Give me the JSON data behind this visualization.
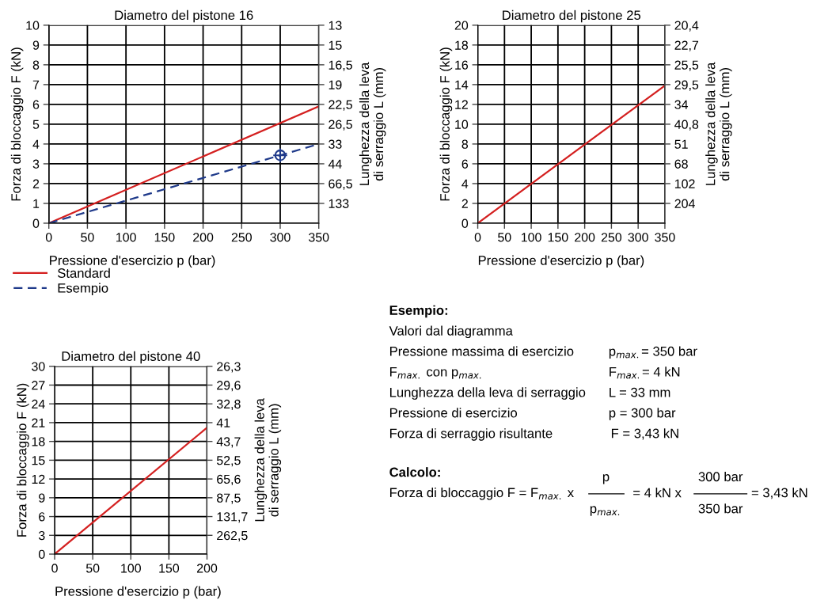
{
  "chart_data": [
    {
      "type": "line",
      "title": "Diametro del pistone 16",
      "xlabel": "Pressione d'esercizio p (bar)",
      "ylabel": "Forza di bloccaggio F (kN)",
      "y2label": "Lunghezza della leva\ndi serraggio L (mm)",
      "x": [
        0,
        350
      ],
      "series": [
        {
          "name": "Standard",
          "color": "#d42020",
          "values": [
            0,
            5.9
          ]
        },
        {
          "name": "Esempio",
          "color": "#1f3a8a",
          "values": [
            0,
            4
          ],
          "line_style": "dashed"
        },
        {
          "type": "scatter",
          "color": "#1f3a8a",
          "x": [
            300
          ],
          "values": [
            3.43
          ]
        }
      ],
      "xlim": [
        0,
        350
      ],
      "xticks": [
        0,
        50,
        100,
        150,
        200,
        250,
        300,
        350
      ],
      "ylim": [
        0,
        10
      ],
      "yticks": [
        0,
        1,
        2,
        3,
        4,
        5,
        6,
        7,
        8,
        9,
        10
      ],
      "y2_categories": [
        "13",
        "15",
        "16,5",
        "19",
        "22,5",
        "26,5",
        "33",
        "44",
        "66,5",
        "133",
        null
      ],
      "grid": true,
      "legend": "bottom left"
    },
    {
      "type": "line",
      "title": "Diametro del pistone 25",
      "xlabel": "Pressione d'esercizio p (bar)",
      "ylabel": "Forza di bloccaggio F (kN)",
      "y2label": "Lunghezza della leva\ndi serraggio L (mm)",
      "x": [
        0,
        350
      ],
      "series": [
        {
          "color": "#d42020",
          "values": [
            0,
            13.9
          ]
        }
      ],
      "xlim": [
        0,
        350
      ],
      "xticks": [
        0,
        50,
        100,
        150,
        200,
        250,
        300,
        350
      ],
      "ylim": [
        0,
        20
      ],
      "yticks": [
        0,
        2,
        4,
        6,
        8,
        10,
        12,
        14,
        16,
        18,
        20
      ],
      "y2_categories": [
        "20,4",
        "22,7",
        "25,5",
        "29,5",
        "34",
        "40,8",
        "51",
        "68",
        "102",
        "204",
        null
      ],
      "grid": true
    },
    {
      "type": "line",
      "title": "Diametro del pistone 40",
      "xlabel": "Pressione d'esercizio p (bar)",
      "ylabel": "Forza di bloccaggio F (kN)",
      "y2label": "Lunghezza della leva\ndi serraggio L (mm)",
      "x": [
        0,
        200
      ],
      "series": [
        {
          "color": "#d42020",
          "values": [
            0,
            20.2
          ]
        }
      ],
      "xlim": [
        0,
        200
      ],
      "xticks": [
        0,
        50,
        100,
        150,
        200
      ],
      "ylim": [
        0,
        30
      ],
      "yticks": [
        0,
        3,
        6,
        9,
        12,
        15,
        18,
        21,
        24,
        27,
        30
      ],
      "y2_categories": [
        "26,3",
        "29,6",
        "32,8",
        "41",
        "43,7",
        "52,5",
        "65,6",
        "87,5",
        "131,7",
        "262,5",
        null
      ],
      "grid": true
    },
    {
      "type": "other",
      "annotations": [
        "Esempio:",
        "Valori dal diagramma",
        "Pressione massima di esercizio",
        "p$_{max.}$= 350 bar",
        "F$_{max.}$ con p$_{max.}$",
        "F$_{max.}$= 4 kN",
        "Lunghezza della leva di serraggio",
        "L = 33 mm",
        "Pressione di esercizio",
        "p = 300 bar",
        "Forza di serraggio risultante",
        "F = 3,43 kN",
        "Calcolo:",
        "Forza di bloccaggio F = F$_{max.}$ x",
        "p",
        "p$_{max.}$",
        "= 4 kN x",
        "300 bar",
        "350 bar",
        "= 3,43 kN"
      ]
    }
  ]
}
